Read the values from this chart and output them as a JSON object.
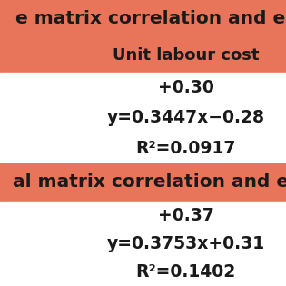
{
  "header1_text": "e matrix correlation and eq",
  "subheader1_text": "Unit labour cost",
  "row1_line1": "+0.30",
  "row1_line2": "y=0.3447x−0.28",
  "row1_line3": "R²=0.0917",
  "header2_text": "al matrix correlation and eq",
  "row2_line1": "+0.37",
  "row2_line2": "y=0.3753x+0.31",
  "row2_line3": "R²=0.1402",
  "header_bg": "#E8755A",
  "text_color_dark": "#1a1a1a",
  "white_bg": "#FFFFFF",
  "font_size_header": 14.5,
  "font_size_subheader": 13.0,
  "font_size_content": 13.5,
  "fig_width": 3.15,
  "fig_height": 3.15
}
